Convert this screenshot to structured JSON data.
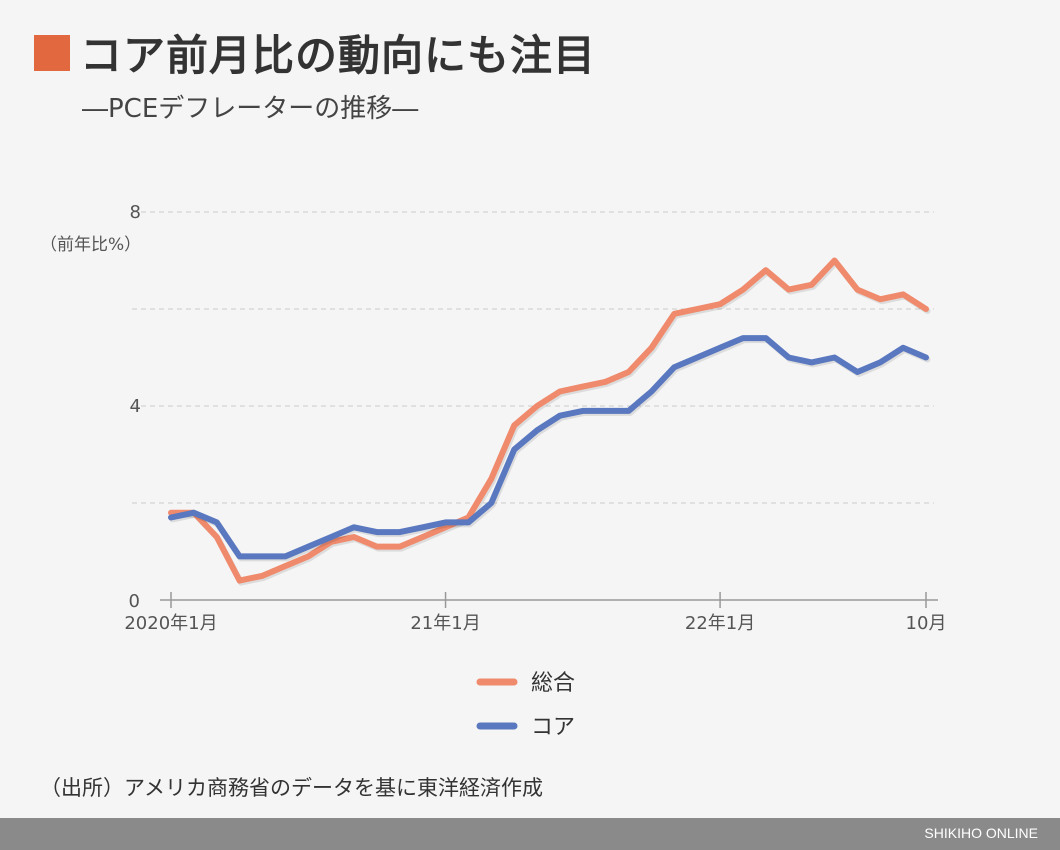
{
  "title": "コア前月比の動向にも注目",
  "subtitle": "―PCEデフレーターの推移―",
  "source": "（出所）アメリカ商務省のデータを基に東洋経済作成",
  "footer": "SHIKIHO ONLINE",
  "colors": {
    "title_square": "#e2683f",
    "series_total": "#ef8a6c",
    "series_core": "#5a78bf",
    "grid": "#cccccc",
    "axis": "#999999",
    "footer_bar": "#8a8a8a"
  },
  "chart_data": {
    "type": "line",
    "ylabel": "（前年比%）",
    "ylim": [
      0,
      8
    ],
    "yticks": [
      0,
      4,
      8
    ],
    "gridlines": [
      2,
      4,
      6,
      8
    ],
    "grid": true,
    "legend_placement": "bottom-center",
    "x": [
      "2020-01",
      "2020-02",
      "2020-03",
      "2020-04",
      "2020-05",
      "2020-06",
      "2020-07",
      "2020-08",
      "2020-09",
      "2020-10",
      "2020-11",
      "2020-12",
      "2021-01",
      "2021-02",
      "2021-03",
      "2021-04",
      "2021-05",
      "2021-06",
      "2021-07",
      "2021-08",
      "2021-09",
      "2021-10",
      "2021-11",
      "2021-12",
      "2022-01",
      "2022-02",
      "2022-03",
      "2022-04",
      "2022-05",
      "2022-06",
      "2022-07",
      "2022-08",
      "2022-09",
      "2022-10"
    ],
    "xticks": [
      {
        "x": "2020-01",
        "label": "2020年1月"
      },
      {
        "x": "2021-01",
        "label": "21年1月"
      },
      {
        "x": "2022-01",
        "label": "22年1月"
      },
      {
        "x": "2022-10",
        "label": "10月"
      }
    ],
    "series": [
      {
        "name": "総合",
        "color": "#ef8a6c",
        "values": [
          1.8,
          1.8,
          1.3,
          0.4,
          0.5,
          0.7,
          0.9,
          1.2,
          1.3,
          1.1,
          1.1,
          1.3,
          1.5,
          1.7,
          2.5,
          3.6,
          4.0,
          4.3,
          4.4,
          4.5,
          4.7,
          5.2,
          5.9,
          6.0,
          6.1,
          6.4,
          6.8,
          6.4,
          6.5,
          7.0,
          6.4,
          6.2,
          6.3,
          6.0
        ]
      },
      {
        "name": "コア",
        "color": "#5a78bf",
        "values": [
          1.7,
          1.8,
          1.6,
          0.9,
          0.9,
          0.9,
          1.1,
          1.3,
          1.5,
          1.4,
          1.4,
          1.5,
          1.6,
          1.6,
          2.0,
          3.1,
          3.5,
          3.8,
          3.9,
          3.9,
          3.9,
          4.3,
          4.8,
          5.0,
          5.2,
          5.4,
          5.4,
          5.0,
          4.9,
          5.0,
          4.7,
          4.9,
          5.2,
          5.0
        ]
      }
    ]
  }
}
